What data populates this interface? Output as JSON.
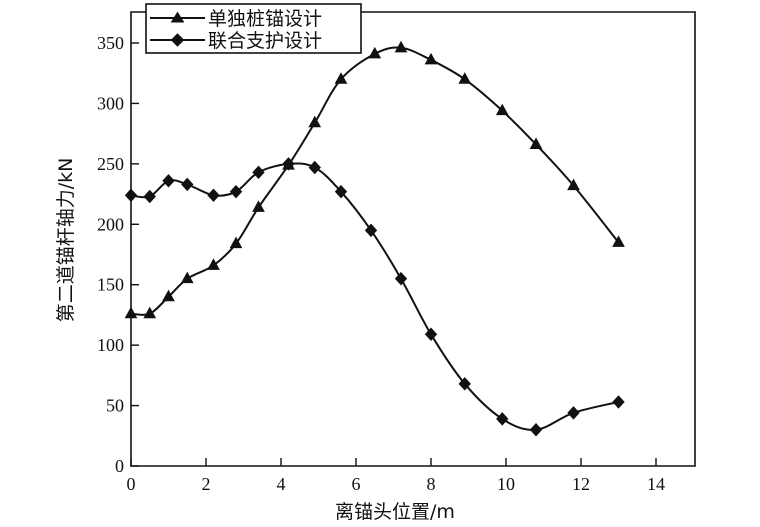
{
  "chart_data": {
    "type": "line",
    "xlabel": "离锚头位置/m",
    "ylabel": "第二道锚杆轴力/kN",
    "xlim": [
      0,
      14
    ],
    "ylim": [
      0,
      350
    ],
    "xticks": [
      0,
      2,
      4,
      6,
      8,
      10,
      12,
      14
    ],
    "yticks": [
      0,
      50,
      100,
      150,
      200,
      250,
      300,
      350
    ],
    "grid": false,
    "legend_position": "top-left",
    "series": [
      {
        "name": "单独桩锚设计",
        "marker": "triangle",
        "points": [
          [
            0,
            126
          ],
          [
            0.5,
            126
          ],
          [
            1,
            140
          ],
          [
            1.5,
            155
          ],
          [
            2.2,
            166
          ],
          [
            2.8,
            184
          ],
          [
            3.4,
            214
          ],
          [
            4.2,
            249
          ],
          [
            4.9,
            284
          ],
          [
            5.6,
            320
          ],
          [
            6.5,
            341
          ],
          [
            7.2,
            346
          ],
          [
            8.0,
            336
          ],
          [
            8.9,
            320
          ],
          [
            9.9,
            294
          ],
          [
            10.8,
            266
          ],
          [
            11.8,
            232
          ],
          [
            13.0,
            185
          ]
        ]
      },
      {
        "name": "联合支护设计",
        "marker": "diamond",
        "points": [
          [
            0,
            224
          ],
          [
            0.5,
            223
          ],
          [
            1,
            236
          ],
          [
            1.5,
            233
          ],
          [
            2.2,
            224
          ],
          [
            2.8,
            227
          ],
          [
            3.4,
            243
          ],
          [
            4.2,
            250
          ],
          [
            4.9,
            247
          ],
          [
            5.6,
            227
          ],
          [
            6.4,
            195
          ],
          [
            7.2,
            155
          ],
          [
            8.0,
            109
          ],
          [
            8.9,
            68
          ],
          [
            9.9,
            39
          ],
          [
            10.8,
            30
          ],
          [
            11.8,
            44
          ],
          [
            13.0,
            53
          ]
        ]
      }
    ]
  }
}
